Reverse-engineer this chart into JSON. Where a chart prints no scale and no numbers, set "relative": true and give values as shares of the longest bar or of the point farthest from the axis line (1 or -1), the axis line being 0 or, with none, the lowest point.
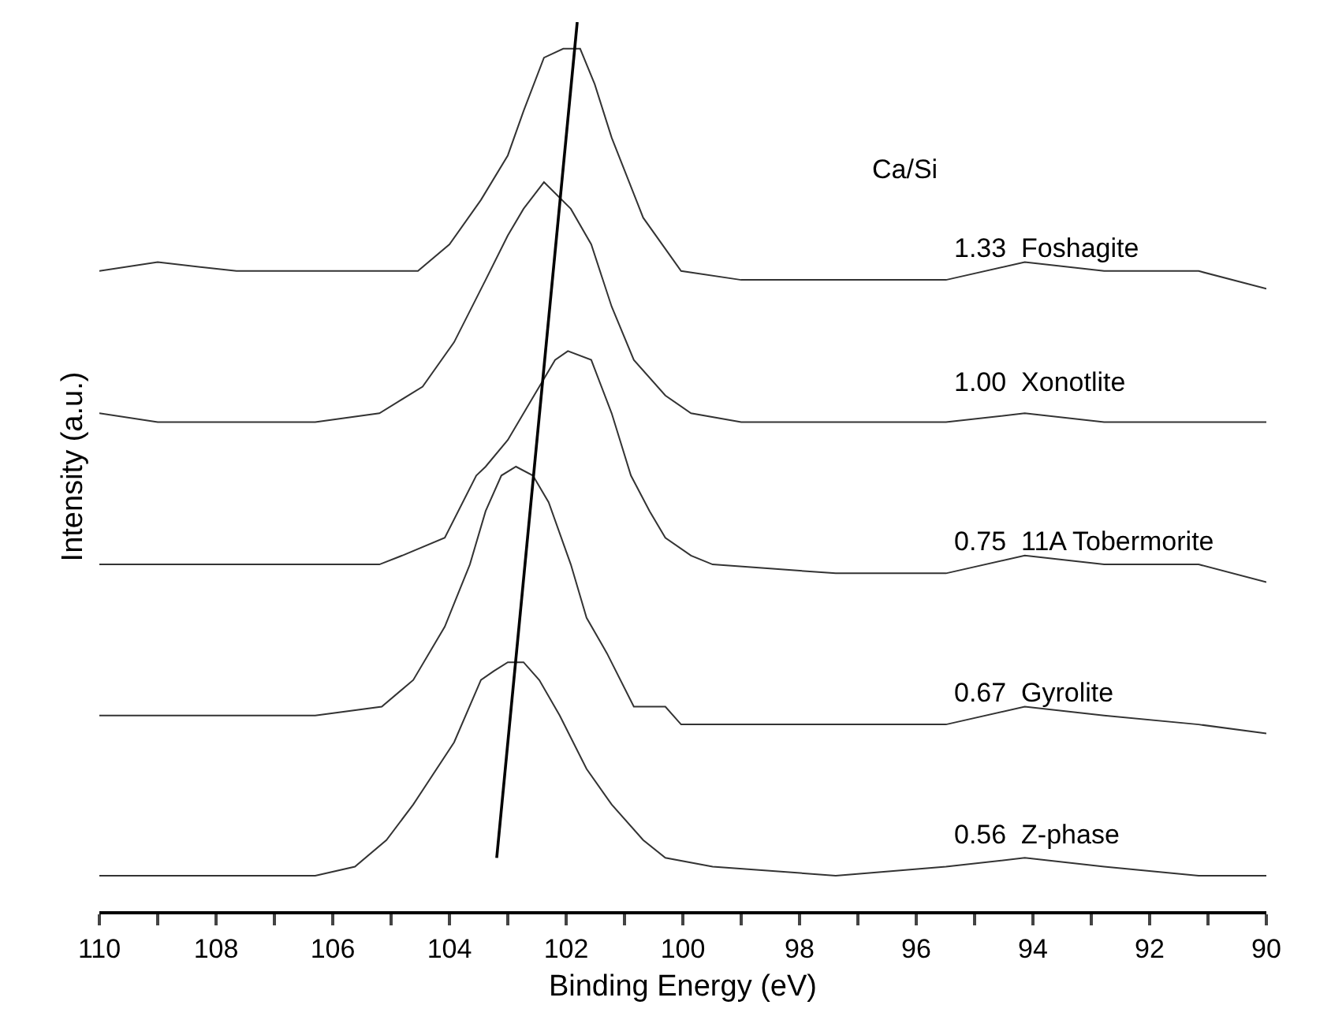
{
  "chart_data": {
    "type": "line",
    "relative": true,
    "xlabel": "Binding Energy (eV)",
    "ylabel": "Intensity (a.u.)",
    "legend_title": "Ca/Si",
    "xlim": [
      110,
      90
    ],
    "xticks": [
      110,
      {
        "value": 109,
        "label": null
      },
      108,
      {
        "value": 107,
        "label": null
      },
      106,
      {
        "value": 105,
        "label": null
      },
      104,
      {
        "value": 103,
        "label": null
      },
      102,
      {
        "value": 101,
        "label": null
      },
      100,
      {
        "value": 99,
        "label": null
      },
      98,
      {
        "value": 97,
        "label": null
      },
      96,
      {
        "value": 95,
        "label": null
      },
      94,
      {
        "value": 93,
        "label": null
      },
      92,
      {
        "value": 91,
        "label": null
      },
      90
    ],
    "grid": false,
    "marker": "none",
    "line_style": "solid",
    "series": [
      {
        "name": "1.33  Foshagite",
        "color": "#333333",
        "x": [
          110,
          109,
          107.65,
          106.3,
          105.2,
          104.54,
          104,
          103.46,
          103,
          102.73,
          102.38,
          102.05,
          101.76,
          101.51,
          101.22,
          100.68,
          100.03,
          99,
          97.38,
          95.49,
          94.14,
          92.78,
          91.16,
          90
        ],
        "values": [
          0.72,
          0.73,
          0.72,
          0.72,
          0.72,
          0.72,
          0.75,
          0.8,
          0.85,
          0.9,
          0.96,
          0.97,
          0.97,
          0.93,
          0.87,
          0.78,
          0.72,
          0.71,
          0.71,
          0.71,
          0.73,
          0.72,
          0.72,
          0.7
        ]
      },
      {
        "name": "1.00  Xonotlite",
        "color": "#333333",
        "x": [
          110,
          109,
          107.65,
          106.3,
          105.2,
          104.46,
          103.92,
          103.38,
          103,
          102.73,
          102.38,
          101.92,
          101.57,
          101.22,
          100.84,
          100.3,
          99.86,
          99,
          97.38,
          95.49,
          94.14,
          92.78,
          91.16,
          90
        ],
        "values": [
          0.56,
          0.55,
          0.55,
          0.55,
          0.56,
          0.59,
          0.64,
          0.71,
          0.76,
          0.79,
          0.82,
          0.79,
          0.75,
          0.68,
          0.62,
          0.58,
          0.56,
          0.55,
          0.55,
          0.55,
          0.56,
          0.55,
          0.55,
          0.55
        ]
      },
      {
        "name": "0.75  11A Tobermorite",
        "color": "#333333",
        "x": [
          110,
          109,
          107.65,
          106.3,
          105.2,
          104.81,
          104.08,
          103.54,
          103.38,
          103,
          102.46,
          102.19,
          101.97,
          101.57,
          101.22,
          100.89,
          100.57,
          100.3,
          99.86,
          99.49,
          97.38,
          95.49,
          94.14,
          92.78,
          91.16,
          90
        ],
        "values": [
          0.39,
          0.39,
          0.39,
          0.39,
          0.39,
          0.4,
          0.42,
          0.49,
          0.5,
          0.53,
          0.59,
          0.62,
          0.63,
          0.62,
          0.56,
          0.49,
          0.45,
          0.42,
          0.4,
          0.39,
          0.38,
          0.38,
          0.4,
          0.39,
          0.39,
          0.37
        ]
      },
      {
        "name": "0.67  Gyrolite",
        "color": "#333333",
        "x": [
          110,
          109,
          107.65,
          106.3,
          105.16,
          104.62,
          104.08,
          103.65,
          103.38,
          103.11,
          102.86,
          102.57,
          102.3,
          101.92,
          101.65,
          101.3,
          100.84,
          100.3,
          100.03,
          99.49,
          97.38,
          95.49,
          94.14,
          92.78,
          91.16,
          90
        ],
        "values": [
          0.22,
          0.22,
          0.22,
          0.22,
          0.23,
          0.26,
          0.32,
          0.39,
          0.45,
          0.49,
          0.5,
          0.49,
          0.46,
          0.39,
          0.33,
          0.29,
          0.23,
          0.23,
          0.21,
          0.21,
          0.21,
          0.21,
          0.23,
          0.22,
          0.21,
          0.2
        ]
      },
      {
        "name": "0.56  Z-phase",
        "color": "#333333",
        "x": [
          110,
          109,
          107.65,
          106.3,
          105.62,
          105.08,
          104.62,
          103.92,
          103.46,
          103.24,
          103,
          102.73,
          102.46,
          102.11,
          101.65,
          101.22,
          100.68,
          100.3,
          99.49,
          97.38,
          95.49,
          94.14,
          92.78,
          91.16,
          90
        ],
        "values": [
          0.04,
          0.04,
          0.04,
          0.04,
          0.05,
          0.08,
          0.12,
          0.19,
          0.26,
          0.27,
          0.28,
          0.28,
          0.26,
          0.22,
          0.16,
          0.12,
          0.08,
          0.06,
          0.05,
          0.04,
          0.05,
          0.06,
          0.05,
          0.04,
          0.04
        ]
      },
      {
        "type": "line",
        "color": "#000000",
        "x": [
          103.19,
          101.81
        ],
        "values": [
          0.06,
          1.0
        ]
      }
    ]
  }
}
